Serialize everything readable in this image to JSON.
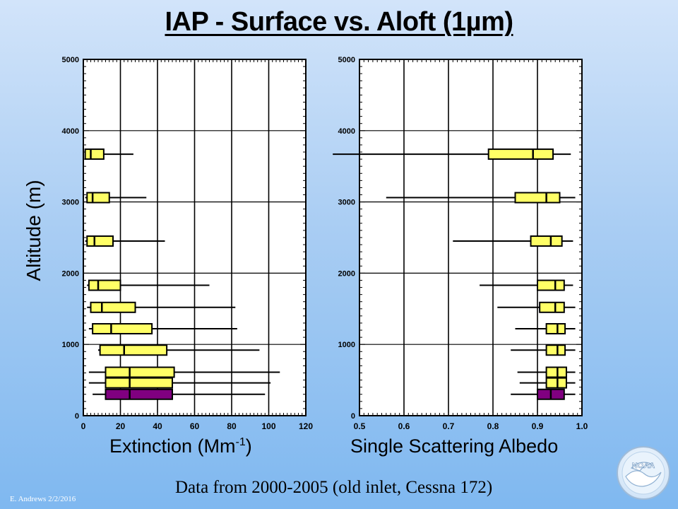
{
  "title": "IAP - Surface vs. Aloft (1µm)",
  "y_axis_label": "Altitude (m)",
  "footer_note": "Data from 2000-2005 (old inlet, Cessna 172)",
  "author_credit": "E. Andrews   2/2/2016",
  "logo_text": "NOAA",
  "colors": {
    "box_aloft": "#ffff66",
    "box_surface": "#800080",
    "line": "#000000"
  },
  "chart_data": [
    {
      "type": "boxplot",
      "xlabel": "Extinction (Mm",
      "xlabel_sup": "-1",
      "xlabel_close": ")",
      "xlim": [
        0,
        120
      ],
      "ylim": [
        0,
        5000
      ],
      "xticks": [
        0,
        20,
        40,
        60,
        80,
        100,
        120
      ],
      "yticks": [
        0,
        1000,
        2000,
        3000,
        4000,
        5000
      ],
      "x_grid": [
        20,
        40,
        60,
        80,
        100
      ],
      "y_grid": [
        1000,
        2000,
        3000,
        4000
      ],
      "boxes": [
        {
          "altitude": 3670,
          "kind": "aloft",
          "whisker_low": 1,
          "q1": 1,
          "median": 4,
          "q3": 11,
          "whisker_high": 27
        },
        {
          "altitude": 3060,
          "kind": "aloft",
          "whisker_low": 1,
          "q1": 2,
          "median": 5,
          "q3": 14,
          "whisker_high": 34
        },
        {
          "altitude": 2450,
          "kind": "aloft",
          "whisker_low": 1,
          "q1": 2,
          "median": 6,
          "q3": 16,
          "whisker_high": 44
        },
        {
          "altitude": 1830,
          "kind": "aloft",
          "whisker_low": 2,
          "q1": 3,
          "median": 8,
          "q3": 20,
          "whisker_high": 68
        },
        {
          "altitude": 1520,
          "kind": "aloft",
          "whisker_low": 2,
          "q1": 4,
          "median": 10,
          "q3": 28,
          "whisker_high": 82
        },
        {
          "altitude": 1220,
          "kind": "aloft",
          "whisker_low": 3,
          "q1": 5,
          "median": 15,
          "q3": 37,
          "whisker_high": 83
        },
        {
          "altitude": 920,
          "kind": "aloft",
          "whisker_low": 8,
          "q1": 9,
          "median": 22,
          "q3": 45,
          "whisker_high": 95
        },
        {
          "altitude": 610,
          "kind": "aloft",
          "whisker_low": 3,
          "q1": 12,
          "median": 25,
          "q3": 49,
          "whisker_high": 106
        },
        {
          "altitude": 460,
          "kind": "aloft",
          "whisker_low": 3,
          "q1": 12,
          "median": 25,
          "q3": 48,
          "whisker_high": 101
        },
        {
          "altitude": 300,
          "kind": "surface",
          "whisker_low": 5,
          "q1": 12,
          "median": 25,
          "q3": 48,
          "whisker_high": 98
        }
      ]
    },
    {
      "type": "boxplot",
      "xlabel": "Single Scattering Albedo",
      "xlim": [
        0.5,
        1.0
      ],
      "ylim": [
        0,
        5000
      ],
      "xticks": [
        0.5,
        0.6,
        0.7,
        0.8,
        0.9,
        1.0
      ],
      "yticks": [
        0,
        1000,
        2000,
        3000,
        4000,
        5000
      ],
      "x_grid": [
        0.6,
        0.7,
        0.8,
        0.9
      ],
      "y_grid": [
        1000,
        2000,
        3000,
        4000
      ],
      "boxes": [
        {
          "altitude": 3670,
          "kind": "aloft",
          "whisker_low": 0.44,
          "q1": 0.79,
          "median": 0.89,
          "q3": 0.935,
          "whisker_high": 0.975
        },
        {
          "altitude": 3060,
          "kind": "aloft",
          "whisker_low": 0.56,
          "q1": 0.85,
          "median": 0.92,
          "q3": 0.95,
          "whisker_high": 0.985
        },
        {
          "altitude": 2450,
          "kind": "aloft",
          "whisker_low": 0.71,
          "q1": 0.885,
          "median": 0.93,
          "q3": 0.955,
          "whisker_high": 0.98
        },
        {
          "altitude": 1830,
          "kind": "aloft",
          "whisker_low": 0.77,
          "q1": 0.9,
          "median": 0.94,
          "q3": 0.96,
          "whisker_high": 0.98
        },
        {
          "altitude": 1520,
          "kind": "aloft",
          "whisker_low": 0.81,
          "q1": 0.905,
          "median": 0.94,
          "q3": 0.96,
          "whisker_high": 0.985
        },
        {
          "altitude": 1220,
          "kind": "aloft",
          "whisker_low": 0.85,
          "q1": 0.92,
          "median": 0.945,
          "q3": 0.962,
          "whisker_high": 0.985
        },
        {
          "altitude": 920,
          "kind": "aloft",
          "whisker_low": 0.84,
          "q1": 0.92,
          "median": 0.945,
          "q3": 0.962,
          "whisker_high": 0.985
        },
        {
          "altitude": 610,
          "kind": "aloft",
          "whisker_low": 0.855,
          "q1": 0.92,
          "median": 0.945,
          "q3": 0.965,
          "whisker_high": 0.985
        },
        {
          "altitude": 460,
          "kind": "aloft",
          "whisker_low": 0.86,
          "q1": 0.92,
          "median": 0.945,
          "q3": 0.965,
          "whisker_high": 0.985
        },
        {
          "altitude": 300,
          "kind": "surface",
          "whisker_low": 0.84,
          "q1": 0.9,
          "median": 0.93,
          "q3": 0.96,
          "whisker_high": 0.985
        }
      ]
    }
  ]
}
